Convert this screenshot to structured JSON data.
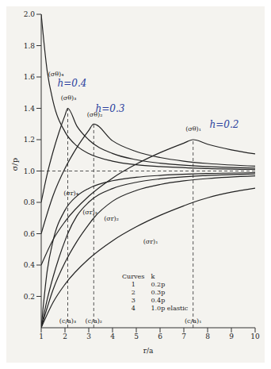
{
  "chart_data": {
    "type": "line",
    "x_label": "r/a",
    "y_label": "σ/p",
    "xlim": [
      1,
      10
    ],
    "xticks": [
      1,
      2,
      3,
      4,
      5,
      6,
      7,
      8,
      9,
      10
    ],
    "ylim": [
      0,
      2
    ],
    "yticks": [
      0.2,
      0.4,
      0.6,
      0.8,
      {
        "value": 1,
        "label": "1.0"
      },
      1.2,
      1.4,
      1.6,
      1.8,
      {
        "value": 2,
        "label": "2.0"
      }
    ],
    "grid": false,
    "series": [
      {
        "name": "(σθ)₄",
        "color": "#222222",
        "line_style": "solid",
        "label_at": [
          1.62,
          1.62
        ],
        "x": [
          1,
          1.25,
          1.5,
          2,
          2.5,
          3,
          4,
          5,
          6,
          8,
          10
        ],
        "values": [
          2,
          1.64,
          1.444,
          1.25,
          1.16,
          1.111,
          1.063,
          1.04,
          1.028,
          1.016,
          1.01
        ]
      },
      {
        "name": "(σθ)₃",
        "color": "#222222",
        "line_style": "solid",
        "label_at": [
          2.15,
          1.47
        ],
        "x": [
          1,
          1.25,
          1.5,
          1.75,
          2,
          2.117,
          2.5,
          3,
          4,
          5,
          6,
          8,
          10
        ],
        "values": [
          0.8,
          0.979,
          1.124,
          1.248,
          1.355,
          1.4,
          1.287,
          1.199,
          1.112,
          1.072,
          1.05,
          1.028,
          1.018
        ]
      },
      {
        "name": "(σθ)₂",
        "color": "#222222",
        "line_style": "solid",
        "label_at": [
          3.25,
          1.36
        ],
        "x": [
          1,
          1.5,
          2,
          2.5,
          3,
          3.21,
          4,
          5,
          6,
          7,
          8,
          10
        ],
        "values": [
          0.6,
          0.843,
          1.016,
          1.15,
          1.259,
          1.3,
          1.193,
          1.124,
          1.086,
          1.063,
          1.048,
          1.031
        ]
      },
      {
        "name": "(σθ)₁",
        "color": "#222222",
        "line_style": "solid",
        "label_at": [
          7.4,
          1.27
        ],
        "x": [
          1,
          1.5,
          2,
          3,
          4,
          5,
          6,
          7,
          7.39,
          8,
          9,
          10
        ],
        "values": [
          0.4,
          0.562,
          0.677,
          0.839,
          0.955,
          1.044,
          1.117,
          1.178,
          1.2,
          1.171,
          1.135,
          1.109
        ]
      },
      {
        "name": "(σr)₄",
        "color": "#222222",
        "line_style": "solid",
        "label_at": [
          2.25,
          0.86
        ],
        "x": [
          1,
          1.25,
          1.5,
          2,
          2.5,
          3,
          4,
          5,
          6,
          8,
          10
        ],
        "values": [
          0,
          0.36,
          0.556,
          0.75,
          0.84,
          0.889,
          0.938,
          0.96,
          0.972,
          0.984,
          0.99
        ]
      },
      {
        "name": "(σr)₃",
        "color": "#222222",
        "line_style": "solid",
        "label_at": [
          3.05,
          0.74
        ],
        "x": [
          1,
          1.25,
          1.5,
          1.75,
          2,
          2.117,
          2.5,
          3,
          4,
          5,
          6,
          8,
          10
        ],
        "values": [
          0,
          0.179,
          0.324,
          0.448,
          0.555,
          0.6,
          0.713,
          0.801,
          0.888,
          0.928,
          0.95,
          0.972,
          0.982
        ]
      },
      {
        "name": "(σr)₂",
        "color": "#222222",
        "line_style": "solid",
        "label_at": [
          3.95,
          0.7
        ],
        "x": [
          1,
          1.5,
          2,
          2.5,
          3,
          3.21,
          4,
          5,
          6,
          7,
          8,
          10
        ],
        "values": [
          0,
          0.243,
          0.416,
          0.55,
          0.659,
          0.7,
          0.807,
          0.876,
          0.914,
          0.937,
          0.952,
          0.969
        ]
      },
      {
        "name": "(σr)₁",
        "color": "#222222",
        "line_style": "solid",
        "label_at": [
          5.6,
          0.55
        ],
        "x": [
          1,
          1.5,
          2,
          3,
          4,
          5,
          6,
          7,
          7.39,
          8,
          9,
          10
        ],
        "values": [
          0,
          0.162,
          0.277,
          0.439,
          0.555,
          0.644,
          0.717,
          0.778,
          0.8,
          0.829,
          0.865,
          0.891
        ]
      }
    ],
    "reference_line": 1,
    "c_over_a": [
      {
        "label": "(c/a)₃",
        "value": 2.117,
        "top": 1.4
      },
      {
        "label": "(c/a)₂",
        "value": 3.21,
        "top": 1.3
      },
      {
        "label": "(c/a)₁",
        "value": 7.39,
        "top": 1.2
      }
    ],
    "legend_table": {
      "headers": [
        "Curves",
        "k"
      ],
      "rows": [
        [
          "1",
          "0.2p"
        ],
        [
          "2",
          "0.3p"
        ],
        [
          "3",
          "0.4p"
        ],
        [
          "4",
          "1.0p elastic"
        ]
      ]
    },
    "annotations": [
      {
        "text": "h=0.4",
        "x": 2.3,
        "y": 1.56,
        "color": "#2a3f9e"
      },
      {
        "text": "h=0.3",
        "x": 3.9,
        "y": 1.4,
        "color": "#2a3f9e"
      },
      {
        "text": "h=0.2",
        "x": 8.7,
        "y": 1.3,
        "color": "#2a3f9e"
      }
    ]
  }
}
